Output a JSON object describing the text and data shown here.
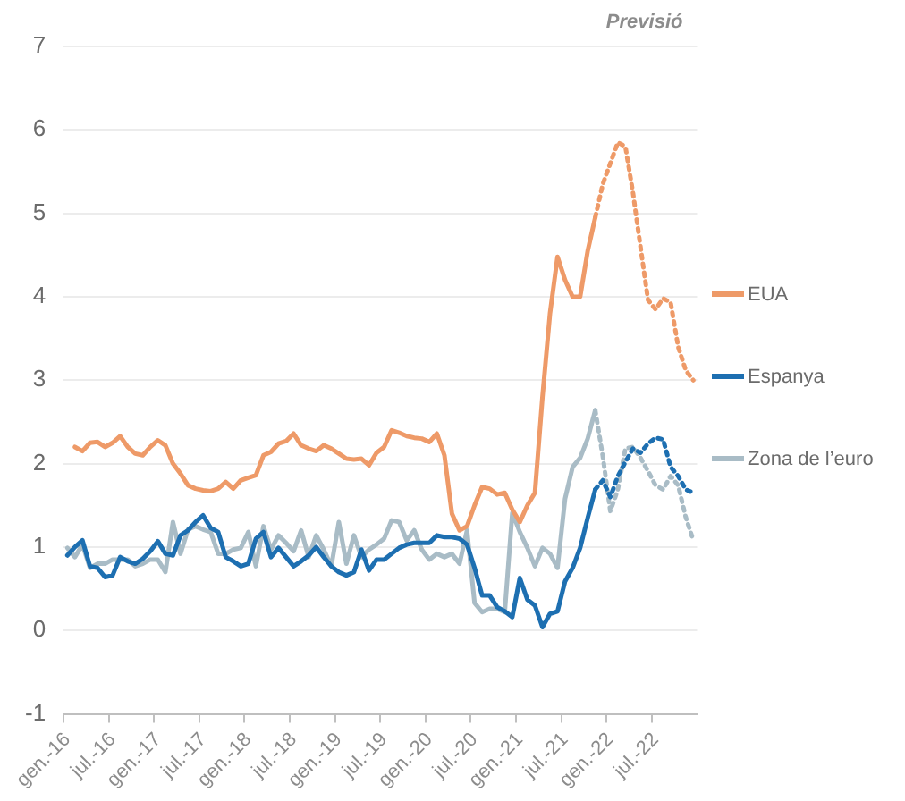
{
  "chart_data": {
    "type": "line",
    "categories": [
      "gen.-16",
      null,
      null,
      null,
      null,
      null,
      "jul.-16",
      null,
      null,
      null,
      null,
      null,
      "gen.-17",
      null,
      null,
      null,
      null,
      null,
      "jul.-17",
      null,
      null,
      null,
      null,
      null,
      "gen.-18",
      null,
      null,
      null,
      null,
      null,
      "jul.-18",
      null,
      null,
      null,
      null,
      null,
      "gen.-19",
      null,
      null,
      null,
      null,
      null,
      "jul.-19",
      null,
      null,
      null,
      null,
      null,
      "gen.-20",
      null,
      null,
      null,
      null,
      null,
      "jul.-20",
      null,
      null,
      null,
      null,
      null,
      "gen.-21",
      null,
      null,
      null,
      null,
      null,
      "jul.-21",
      null,
      null,
      null,
      null,
      null,
      "gen.-22",
      null,
      null,
      null,
      null,
      null,
      "jul.-22",
      null,
      null,
      null,
      null,
      null
    ],
    "series": [
      {
        "name": "EUA",
        "color": "#ee9a68",
        "line_style": "solid",
        "values": [
          null,
          2.2,
          2.15,
          2.25,
          2.26,
          2.2,
          2.25,
          2.33,
          2.2,
          2.12,
          2.1,
          2.2,
          2.28,
          2.22,
          2.0,
          1.88,
          1.74,
          1.7,
          1.68,
          1.67,
          1.7,
          1.78,
          1.7,
          1.8,
          1.83,
          1.86,
          2.1,
          2.14,
          2.24,
          2.27,
          2.36,
          2.22,
          2.18,
          2.15,
          2.22,
          2.18,
          2.12,
          2.06,
          2.05,
          2.06,
          1.98,
          2.13,
          2.2,
          2.4,
          2.37,
          2.33,
          2.31,
          2.3,
          2.26,
          2.36,
          2.1,
          1.4,
          1.2,
          1.25,
          1.5,
          1.72,
          1.7,
          1.63,
          1.65,
          1.45,
          1.3,
          1.5,
          1.65,
          2.8,
          3.8,
          4.48,
          4.2,
          4.0,
          4.0,
          4.55,
          4.95,
          null,
          null,
          null,
          null,
          null,
          null,
          null,
          null,
          null,
          null,
          null,
          null,
          null
        ]
      },
      {
        "color": "#ee9a68",
        "line_style": "dotted",
        "values": [
          null,
          null,
          null,
          null,
          null,
          null,
          null,
          null,
          null,
          null,
          null,
          null,
          null,
          null,
          null,
          null,
          null,
          null,
          null,
          null,
          null,
          null,
          null,
          null,
          null,
          null,
          null,
          null,
          null,
          null,
          null,
          null,
          null,
          null,
          null,
          null,
          null,
          null,
          null,
          null,
          null,
          null,
          null,
          null,
          null,
          null,
          null,
          null,
          null,
          null,
          null,
          null,
          null,
          null,
          null,
          null,
          null,
          null,
          null,
          null,
          null,
          null,
          null,
          null,
          null,
          null,
          null,
          null,
          null,
          null,
          4.95,
          5.35,
          5.6,
          5.85,
          5.8,
          5.25,
          4.6,
          3.96,
          3.85,
          3.98,
          3.93,
          3.4,
          3.12,
          3.0
        ]
      },
      {
        "name": "Espanya",
        "color": "#1d6fb1",
        "line_style": "solid",
        "values": [
          0.9,
          1.0,
          1.08,
          0.77,
          0.75,
          0.64,
          0.66,
          0.88,
          0.83,
          0.8,
          0.86,
          0.95,
          1.07,
          0.92,
          0.9,
          1.14,
          1.2,
          1.3,
          1.38,
          1.23,
          1.18,
          0.88,
          0.83,
          0.77,
          0.8,
          1.1,
          1.18,
          0.88,
          0.99,
          0.88,
          0.77,
          0.83,
          0.9,
          1.0,
          0.88,
          0.77,
          0.7,
          0.66,
          0.7,
          0.97,
          0.72,
          0.85,
          0.85,
          0.92,
          0.99,
          1.03,
          1.05,
          1.05,
          1.05,
          1.14,
          1.12,
          1.12,
          1.1,
          1.03,
          0.75,
          0.42,
          0.42,
          0.28,
          0.23,
          0.16,
          0.63,
          0.37,
          0.3,
          0.04,
          0.2,
          0.23,
          0.59,
          0.75,
          0.99,
          1.35,
          1.69,
          null,
          null,
          null,
          null,
          null,
          null,
          null,
          null,
          null,
          null,
          null,
          null,
          null
        ]
      },
      {
        "color": "#1d6fb1",
        "line_style": "dotted",
        "values": [
          null,
          null,
          null,
          null,
          null,
          null,
          null,
          null,
          null,
          null,
          null,
          null,
          null,
          null,
          null,
          null,
          null,
          null,
          null,
          null,
          null,
          null,
          null,
          null,
          null,
          null,
          null,
          null,
          null,
          null,
          null,
          null,
          null,
          null,
          null,
          null,
          null,
          null,
          null,
          null,
          null,
          null,
          null,
          null,
          null,
          null,
          null,
          null,
          null,
          null,
          null,
          null,
          null,
          null,
          null,
          null,
          null,
          null,
          null,
          null,
          null,
          null,
          null,
          null,
          null,
          null,
          null,
          null,
          null,
          null,
          1.69,
          1.8,
          1.6,
          1.85,
          2.02,
          2.18,
          2.13,
          2.24,
          2.31,
          2.29,
          1.96,
          1.85,
          1.69,
          1.65
        ]
      },
      {
        "name": "Zona de l’euro",
        "color": "#a9bcc6",
        "line_style": "solid",
        "values": [
          0.99,
          0.88,
          1.03,
          0.75,
          0.8,
          0.8,
          0.85,
          0.85,
          0.85,
          0.77,
          0.8,
          0.85,
          0.85,
          0.7,
          1.3,
          0.92,
          1.21,
          1.25,
          1.21,
          1.18,
          0.92,
          0.92,
          0.97,
          0.99,
          1.18,
          0.77,
          1.25,
          0.97,
          1.14,
          1.05,
          0.95,
          1.2,
          0.88,
          1.14,
          0.97,
          0.77,
          1.3,
          0.8,
          1.14,
          0.88,
          0.97,
          1.03,
          1.1,
          1.32,
          1.3,
          1.08,
          1.2,
          0.97,
          0.85,
          0.92,
          0.88,
          0.92,
          0.8,
          1.2,
          0.33,
          0.22,
          0.26,
          0.26,
          0.22,
          1.41,
          1.18,
          0.99,
          0.77,
          0.99,
          0.92,
          0.75,
          1.58,
          1.96,
          2.07,
          2.3,
          2.64,
          null,
          null,
          null,
          null,
          null,
          null,
          null,
          null,
          null,
          null,
          null,
          null,
          null
        ]
      },
      {
        "color": "#a9bcc6",
        "line_style": "dotted",
        "values": [
          null,
          null,
          null,
          null,
          null,
          null,
          null,
          null,
          null,
          null,
          null,
          null,
          null,
          null,
          null,
          null,
          null,
          null,
          null,
          null,
          null,
          null,
          null,
          null,
          null,
          null,
          null,
          null,
          null,
          null,
          null,
          null,
          null,
          null,
          null,
          null,
          null,
          null,
          null,
          null,
          null,
          null,
          null,
          null,
          null,
          null,
          null,
          null,
          null,
          null,
          null,
          null,
          null,
          null,
          null,
          null,
          null,
          null,
          null,
          null,
          null,
          null,
          null,
          null,
          null,
          null,
          null,
          null,
          null,
          null,
          2.64,
          2.09,
          1.43,
          1.69,
          2.18,
          2.2,
          2.07,
          1.91,
          1.74,
          1.69,
          1.85,
          1.74,
          1.36,
          1.08
        ]
      }
    ],
    "ylim": [
      -1,
      7
    ],
    "yticks": [
      -1,
      0,
      1,
      2,
      3,
      4,
      5,
      6,
      7
    ],
    "grid": "y",
    "legend": "right",
    "marker": "none",
    "annotations": [
      "Previsió"
    ]
  }
}
